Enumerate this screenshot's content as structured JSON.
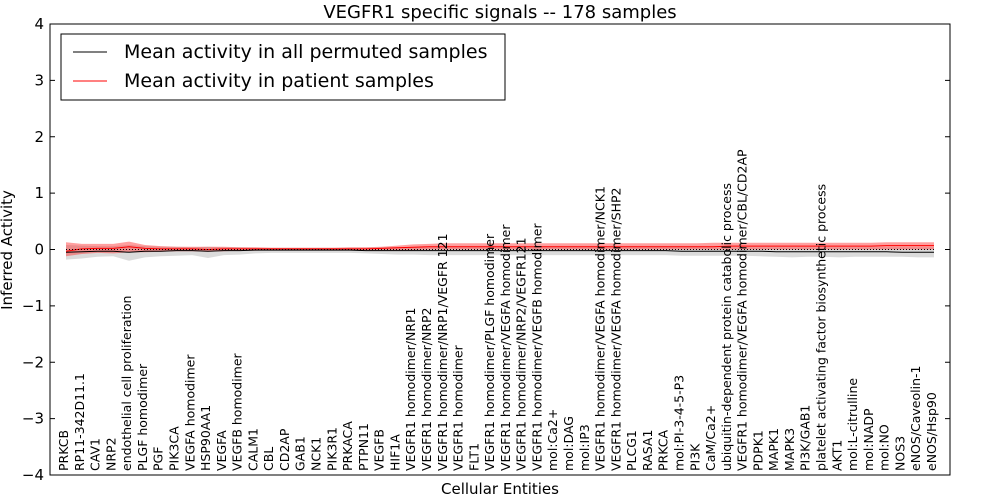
{
  "chart_data": {
    "type": "line",
    "title": "VEGFR1 specific signals -- 178 samples",
    "xlabel": "Cellular Entities",
    "ylabel": "Inferred Activity",
    "ylim": [
      -4,
      4
    ],
    "yticks": [
      "−4",
      "−3",
      "−2",
      "−1",
      "0",
      "1",
      "2",
      "3",
      "4"
    ],
    "ytick_values": [
      -4,
      -3,
      -2,
      -1,
      0,
      1,
      2,
      3,
      4
    ],
    "legend": {
      "position": "top-left",
      "entries": [
        {
          "label": "Mean activity in all permuted samples",
          "color": "#000000"
        },
        {
          "label": "Mean activity in patient samples",
          "color": "#ff0000"
        }
      ]
    },
    "categories": [
      "PRKCB",
      "RP11-342D11.1",
      "CAV1",
      "NRP2",
      "endothelial cell proliferation",
      "PLGF homodimer",
      "PGF",
      "PIK3CA",
      "VEGFA homodimer",
      "HSP90AA1",
      "VEGFA",
      "VEGFB homodimer",
      "CALM1",
      "CBL",
      "CD2AP",
      "GAB1",
      "NCK1",
      "PIK3R1",
      "PRKACA",
      "PTPN11",
      "VEGFB",
      "HIF1A",
      "VEGFR1 homodimer/NRP1",
      "VEGFR1 homodimer/NRP2",
      "VEGFR1 homodimer/NRP1/VEGFR 121",
      "VEGFR1 homodimer",
      "FLT1",
      "VEGFR1 homodimer/PLGF homodimer",
      "VEGFR1 homodimer/VEGFA homodimer",
      "VEGFR1 homodimer/NRP2/VEGFR121",
      "VEGFR1 homodimer/VEGFB homodimer",
      "mol:Ca2+",
      "mol:DAG",
      "mol:IP3",
      "VEGFR1 homodimer/VEGFA homodimer/NCK1",
      "VEGFR1 homodimer/VEGFA homodimer/SHP2",
      "PLCG1",
      "RASA1",
      "PRKCA",
      "mol:PI-3-4-5-P3",
      "PI3K",
      "CaM/Ca2+",
      "ubiquitin-dependent protein catabolic process",
      "VEGFR1 homodimer/VEGFA homodimer/CBL/CD2AP",
      "PDPK1",
      "MAPK1",
      "MAPK3",
      "PI3K/GAB1",
      "platelet activating factor biosynthetic process",
      "AKT1",
      "mol:L-citrulline",
      "mol:NADP",
      "mol:NO",
      "NOS3",
      "eNOS/Caveolin-1",
      "eNOS/Hsp90"
    ],
    "series": [
      {
        "name": "Mean activity in all permuted samples",
        "color": "#000000",
        "values": [
          -0.05,
          -0.04,
          -0.03,
          -0.03,
          -0.05,
          -0.03,
          -0.03,
          -0.02,
          -0.02,
          -0.03,
          -0.02,
          -0.02,
          -0.01,
          -0.01,
          -0.01,
          -0.01,
          -0.01,
          -0.01,
          -0.01,
          -0.02,
          -0.02,
          -0.02,
          -0.02,
          -0.02,
          -0.02,
          -0.02,
          -0.02,
          -0.02,
          -0.02,
          -0.02,
          -0.02,
          -0.02,
          -0.02,
          -0.02,
          -0.02,
          -0.02,
          -0.02,
          -0.02,
          -0.02,
          -0.03,
          -0.03,
          -0.03,
          -0.03,
          -0.03,
          -0.03,
          -0.04,
          -0.04,
          -0.04,
          -0.04,
          -0.04,
          -0.04,
          -0.04,
          -0.04,
          -0.05,
          -0.05,
          -0.05
        ],
        "lower": [
          -0.18,
          -0.16,
          -0.13,
          -0.12,
          -0.2,
          -0.14,
          -0.12,
          -0.11,
          -0.1,
          -0.15,
          -0.1,
          -0.09,
          -0.07,
          -0.06,
          -0.06,
          -0.06,
          -0.06,
          -0.06,
          -0.06,
          -0.07,
          -0.08,
          -0.09,
          -0.09,
          -0.1,
          -0.1,
          -0.1,
          -0.1,
          -0.1,
          -0.1,
          -0.1,
          -0.1,
          -0.1,
          -0.1,
          -0.1,
          -0.1,
          -0.1,
          -0.1,
          -0.1,
          -0.1,
          -0.11,
          -0.11,
          -0.11,
          -0.11,
          -0.11,
          -0.12,
          -0.13,
          -0.14,
          -0.13,
          -0.13,
          -0.14,
          -0.13,
          -0.13,
          -0.13,
          -0.13,
          -0.14,
          -0.14
        ],
        "upper": [
          0.08,
          0.07,
          0.06,
          0.06,
          0.08,
          0.06,
          0.05,
          0.05,
          0.04,
          0.05,
          0.04,
          0.04,
          0.03,
          0.03,
          0.03,
          0.03,
          0.03,
          0.03,
          0.03,
          0.03,
          0.04,
          0.04,
          0.04,
          0.04,
          0.04,
          0.04,
          0.04,
          0.04,
          0.04,
          0.04,
          0.04,
          0.04,
          0.04,
          0.04,
          0.04,
          0.04,
          0.04,
          0.04,
          0.04,
          0.04,
          0.04,
          0.04,
          0.04,
          0.04,
          0.04,
          0.04,
          0.04,
          0.04,
          0.04,
          0.04,
          0.04,
          0.04,
          0.04,
          0.04,
          0.04,
          0.04
        ]
      },
      {
        "name": "Mean activity in patient samples",
        "color": "#ff0000",
        "values": [
          -0.03,
          0.01,
          0.02,
          0.02,
          0.05,
          0.02,
          0.01,
          0.01,
          0.01,
          0.0,
          0.01,
          0.01,
          0.01,
          0.01,
          0.01,
          0.01,
          0.01,
          0.01,
          0.01,
          0.01,
          0.02,
          0.03,
          0.04,
          0.05,
          0.05,
          0.05,
          0.05,
          0.05,
          0.05,
          0.05,
          0.05,
          0.05,
          0.05,
          0.05,
          0.05,
          0.05,
          0.05,
          0.05,
          0.05,
          0.05,
          0.05,
          0.05,
          0.06,
          0.06,
          0.06,
          0.06,
          0.06,
          0.06,
          0.06,
          0.06,
          0.06,
          0.06,
          0.07,
          0.07,
          0.07,
          0.07
        ],
        "lower": [
          -0.12,
          -0.08,
          -0.06,
          -0.07,
          -0.05,
          -0.05,
          -0.04,
          -0.03,
          -0.03,
          -0.04,
          -0.03,
          -0.02,
          -0.02,
          -0.01,
          -0.01,
          -0.01,
          -0.01,
          -0.01,
          -0.01,
          -0.01,
          -0.01,
          -0.01,
          -0.01,
          0.0,
          0.0,
          0.0,
          0.0,
          0.0,
          0.0,
          0.0,
          0.0,
          0.0,
          0.0,
          0.0,
          0.0,
          0.0,
          0.0,
          0.0,
          0.0,
          0.0,
          0.0,
          0.0,
          0.0,
          0.0,
          0.0,
          0.0,
          0.0,
          0.0,
          0.0,
          0.0,
          0.0,
          0.0,
          0.0,
          0.0,
          0.0,
          0.0
        ],
        "upper": [
          0.13,
          0.1,
          0.1,
          0.1,
          0.14,
          0.08,
          0.06,
          0.05,
          0.05,
          0.05,
          0.05,
          0.04,
          0.04,
          0.03,
          0.03,
          0.03,
          0.03,
          0.03,
          0.04,
          0.04,
          0.05,
          0.07,
          0.09,
          0.1,
          0.11,
          0.11,
          0.11,
          0.11,
          0.11,
          0.11,
          0.11,
          0.11,
          0.11,
          0.11,
          0.11,
          0.11,
          0.11,
          0.11,
          0.11,
          0.11,
          0.11,
          0.12,
          0.12,
          0.12,
          0.12,
          0.12,
          0.12,
          0.12,
          0.12,
          0.12,
          0.12,
          0.12,
          0.13,
          0.13,
          0.13,
          0.13
        ]
      }
    ],
    "reference_line": {
      "value": 0,
      "style": "dotted"
    }
  }
}
